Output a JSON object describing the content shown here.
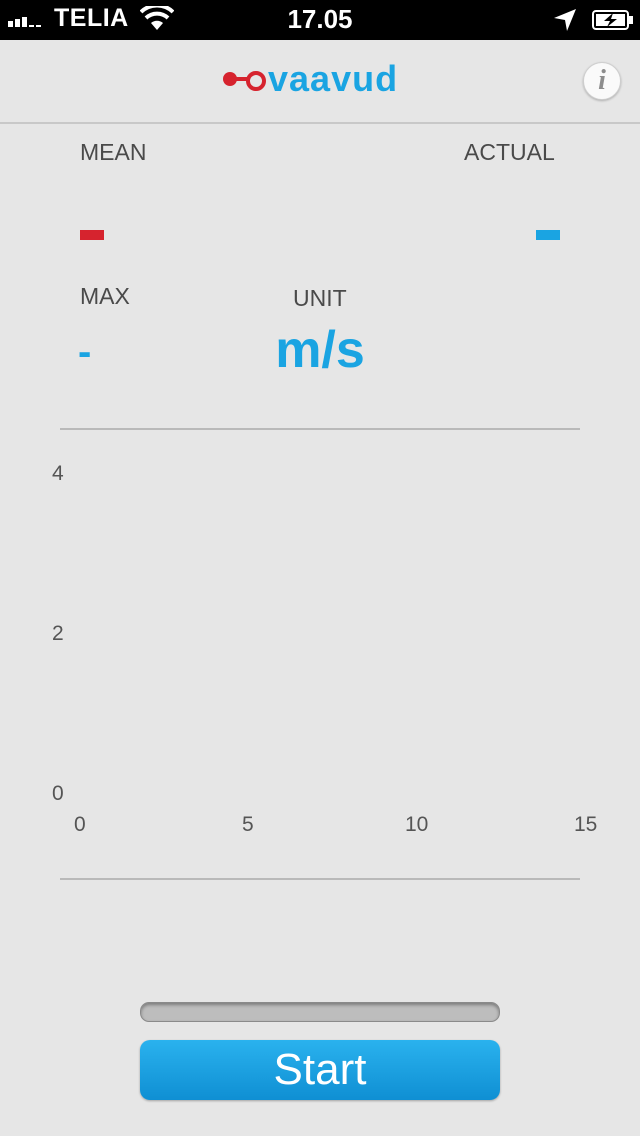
{
  "status_bar": {
    "carrier": "TELIA",
    "time": "17.05"
  },
  "header": {
    "brand": "vaavud",
    "info_glyph": "i"
  },
  "stats": {
    "mean": {
      "label": "MEAN",
      "value": "-",
      "color": "#d6232e"
    },
    "actual": {
      "label": "ACTUAL",
      "value": "-",
      "color": "#1aa4e2"
    },
    "max": {
      "label": "MAX",
      "value": "-"
    },
    "unit": {
      "label": "UNIT",
      "value": "m/s"
    }
  },
  "chart_data": {
    "type": "line",
    "series": [],
    "x_ticks": [
      "0",
      "5",
      "10",
      "15"
    ],
    "y_ticks": [
      "4",
      "2",
      "0"
    ],
    "xlim": [
      0,
      15
    ],
    "ylim": [
      0,
      4
    ],
    "grid": false
  },
  "progress": {
    "value": 0
  },
  "start_button": {
    "label": "Start"
  },
  "colors": {
    "accent": "#1aa4e2",
    "brand_red": "#d6232e",
    "background": "#e6e6e6"
  }
}
